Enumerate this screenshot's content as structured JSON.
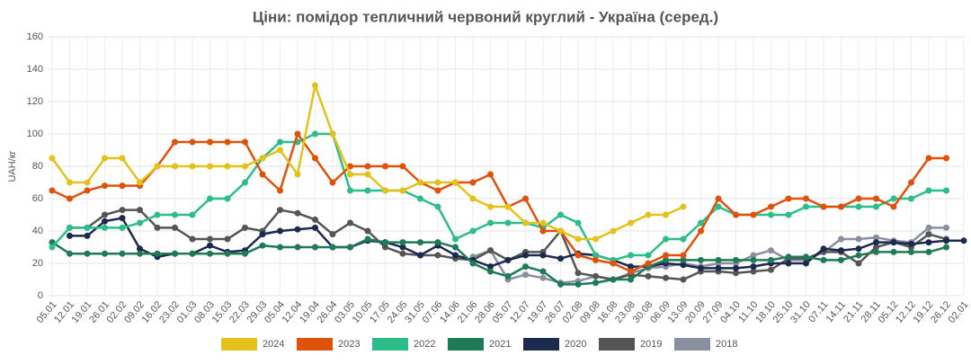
{
  "chart_data": {
    "type": "line",
    "title": "Ціни: помідор тепличний червоний круглий - Україна (серед.)",
    "y_label": "UAH/кг",
    "categories": [
      "05.01",
      "12.01",
      "19.01",
      "26.01",
      "02.02",
      "09.02",
      "16.02",
      "23.02",
      "01.03",
      "08.03",
      "15.03",
      "22.03",
      "29.03",
      "05.04",
      "12.04",
      "19.04",
      "26.04",
      "03.05",
      "10.05",
      "17.05",
      "24.05",
      "31.05",
      "07.06",
      "14.06",
      "21.06",
      "28.06",
      "05.07",
      "12.07",
      "19.07",
      "26.07",
      "02.08",
      "09.08",
      "16.08",
      "23.08",
      "30.08",
      "06.09",
      "13.09",
      "20.09",
      "27.09",
      "04.10",
      "11.10",
      "18.10",
      "25.10",
      "31.10",
      "07.11",
      "14.11",
      "21.11",
      "28.11",
      "05.12",
      "12.12",
      "19.12",
      "26.12",
      "02.01"
    ],
    "ylim": [
      0,
      160
    ],
    "yticks": [
      0,
      20,
      40,
      60,
      80,
      100,
      120,
      140,
      160
    ],
    "grid": true,
    "legend": "bottom",
    "series": [
      {
        "name": "2024",
        "color": "#e3c21b",
        "values": [
          85,
          70,
          70,
          85,
          85,
          70,
          80,
          80,
          80,
          80,
          80,
          80,
          85,
          90,
          75,
          130,
          100,
          75,
          75,
          65,
          65,
          70,
          70,
          70,
          60,
          55,
          55,
          45,
          45,
          40,
          35,
          35,
          40,
          45,
          50,
          50,
          55,
          null,
          null,
          null,
          null,
          null,
          null,
          null,
          null,
          null,
          null,
          null,
          null,
          null,
          null,
          null,
          null
        ]
      },
      {
        "name": "2023",
        "color": "#e0510c",
        "values": [
          65,
          60,
          65,
          68,
          68,
          68,
          80,
          95,
          95,
          95,
          95,
          95,
          75,
          65,
          100,
          85,
          70,
          80,
          80,
          80,
          80,
          70,
          65,
          70,
          70,
          75,
          55,
          60,
          40,
          40,
          25,
          22,
          20,
          15,
          20,
          25,
          25,
          40,
          60,
          50,
          50,
          55,
          60,
          60,
          55,
          55,
          60,
          60,
          55,
          70,
          85,
          85,
          null
        ]
      },
      {
        "name": "2022",
        "color": "#2dbd8a",
        "values": [
          30,
          42,
          42,
          42,
          42,
          45,
          50,
          50,
          50,
          60,
          60,
          70,
          85,
          95,
          95,
          100,
          100,
          65,
          65,
          65,
          65,
          60,
          55,
          35,
          40,
          45,
          45,
          45,
          42,
          50,
          45,
          25,
          22,
          25,
          25,
          35,
          35,
          45,
          55,
          50,
          50,
          50,
          50,
          55,
          55,
          55,
          55,
          55,
          60,
          60,
          65,
          65,
          null
        ]
      },
      {
        "name": "2021",
        "color": "#1f7a57",
        "values": [
          33,
          26,
          26,
          26,
          26,
          26,
          26,
          26,
          26,
          26,
          26,
          26,
          31,
          30,
          30,
          30,
          30,
          30,
          35,
          33,
          33,
          33,
          33,
          30,
          20,
          15,
          12,
          18,
          15,
          7,
          7,
          8,
          10,
          10,
          18,
          22,
          22,
          22,
          22,
          22,
          22,
          22,
          24,
          24,
          22,
          22,
          25,
          27,
          27,
          27,
          27,
          30,
          null
        ]
      },
      {
        "name": "2020",
        "color": "#1c2a4f",
        "values": [
          null,
          37,
          37,
          46,
          48,
          29,
          24,
          26,
          26,
          31,
          27,
          28,
          38,
          40,
          41,
          42,
          30,
          30,
          34,
          33,
          30,
          25,
          31,
          25,
          22,
          18,
          22,
          25,
          25,
          23,
          26,
          25,
          22,
          18,
          18,
          20,
          19,
          17,
          17,
          17,
          18,
          20,
          20,
          20,
          29,
          28,
          29,
          33,
          33,
          32,
          33,
          34,
          34
        ]
      },
      {
        "name": "2019",
        "color": "#555555",
        "values": [
          null,
          42,
          42,
          50,
          53,
          53,
          42,
          42,
          35,
          35,
          35,
          42,
          40,
          53,
          51,
          47,
          38,
          45,
          40,
          30,
          26,
          25,
          25,
          23,
          22,
          28,
          22,
          27,
          27,
          40,
          14,
          12,
          10,
          13,
          12,
          11,
          10,
          15,
          15,
          14,
          15,
          16,
          23,
          23,
          27,
          27,
          20,
          30,
          33,
          30,
          38,
          35,
          null
        ]
      },
      {
        "name": "2018",
        "color": "#8a8fa0",
        "values": [
          null,
          null,
          null,
          null,
          null,
          null,
          null,
          null,
          null,
          null,
          null,
          null,
          null,
          null,
          null,
          null,
          null,
          null,
          null,
          null,
          null,
          null,
          null,
          null,
          24,
          28,
          10,
          13,
          11,
          8,
          9,
          12,
          10,
          14,
          17,
          18,
          20,
          18,
          20,
          20,
          25,
          28,
          22,
          22,
          27,
          35,
          35,
          36,
          34,
          33,
          42,
          42,
          null
        ]
      }
    ]
  }
}
